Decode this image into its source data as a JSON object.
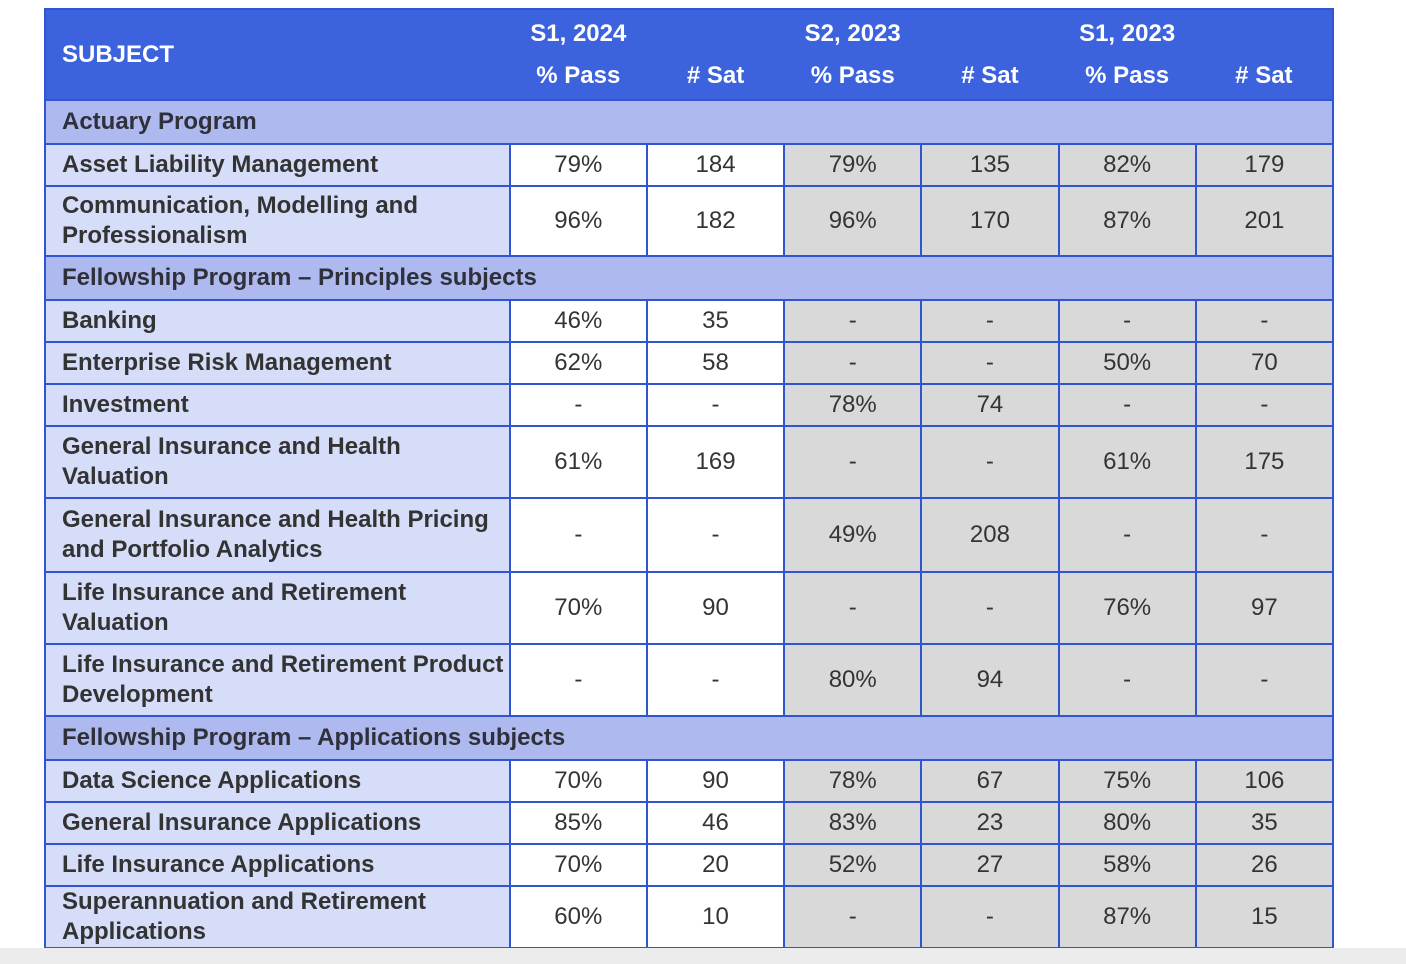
{
  "table": {
    "header": {
      "subject_label": "SUBJECT",
      "groups": [
        {
          "season": "S1, 2024",
          "pass": "% Pass",
          "sat": "# Sat"
        },
        {
          "season": "S2, 2023",
          "pass": "% Pass",
          "sat": "# Sat"
        },
        {
          "season": "S1, 2023",
          "pass": "% Pass",
          "sat": "# Sat"
        }
      ]
    },
    "sections": [
      {
        "title": "Actuary Program",
        "rows": [
          {
            "subject": "Asset Liability Management",
            "values": [
              "79%",
              "184",
              "79%",
              "135",
              "82%",
              "179"
            ]
          },
          {
            "subject": "Communication, Modelling and Professionalism",
            "values": [
              "96%",
              "182",
              "96%",
              "170",
              "87%",
              "201"
            ]
          }
        ]
      },
      {
        "title": "Fellowship Program – Principles subjects",
        "rows": [
          {
            "subject": "Banking",
            "values": [
              "46%",
              "35",
              "-",
              "-",
              "-",
              "-"
            ]
          },
          {
            "subject": "Enterprise Risk Management",
            "values": [
              "62%",
              "58",
              "-",
              "-",
              "50%",
              "70"
            ]
          },
          {
            "subject": "Investment",
            "values": [
              "-",
              "-",
              "78%",
              "74",
              "-",
              "-"
            ]
          },
          {
            "subject": "General Insurance and Health Valuation",
            "values": [
              "61%",
              "169",
              "-",
              "-",
              "61%",
              "175"
            ]
          },
          {
            "subject": "General Insurance and Health Pricing and Portfolio Analytics",
            "values": [
              "-",
              "-",
              "49%",
              "208",
              "-",
              "-"
            ]
          },
          {
            "subject": "Life Insurance and Retirement Valuation",
            "values": [
              "70%",
              "90",
              "-",
              "-",
              "76%",
              "97"
            ]
          },
          {
            "subject": "Life Insurance and Retirement Product Development",
            "values": [
              "-",
              "-",
              "80%",
              "94",
              "-",
              "-"
            ]
          }
        ]
      },
      {
        "title": "Fellowship Program – Applications subjects",
        "rows": [
          {
            "subject": "Data Science Applications",
            "values": [
              "70%",
              "90",
              "78%",
              "67",
              "75%",
              "106"
            ]
          },
          {
            "subject": "General Insurance Applications",
            "values": [
              "85%",
              "46",
              "83%",
              "23",
              "80%",
              "35"
            ]
          },
          {
            "subject": "Life Insurance Applications",
            "values": [
              "70%",
              "20",
              "52%",
              "27",
              "58%",
              "26"
            ]
          },
          {
            "subject": "Superannuation and Retirement Applications",
            "values": [
              "60%",
              "10",
              "-",
              "-",
              "87%",
              "15"
            ]
          }
        ]
      }
    ]
  },
  "colors": {
    "header_bg": "#3C62DE",
    "header_text": "#FFFFFF",
    "section_bg": "#AEBAEF",
    "subject_cell_bg": "#D6DDF8",
    "current_session_cell_bg": "#FFFFFF",
    "past_session_cell_bg": "#D9D9D9",
    "border": "#2F55D0",
    "body_text": "#343434"
  }
}
